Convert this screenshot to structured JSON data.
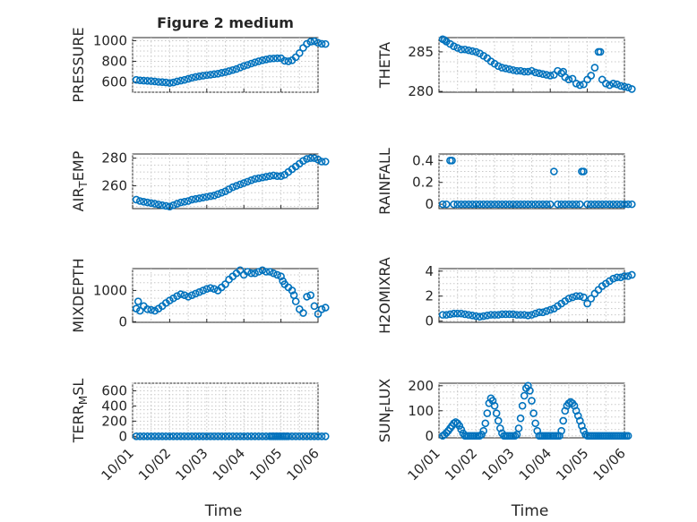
{
  "colors": {
    "marker": "#0072BD",
    "axis": "#262626",
    "grid": "#c8c8c8"
  },
  "chart_data": [
    {
      "type": "scatter",
      "id": "pressure",
      "title": "Figure 2 medium",
      "xlabel": "",
      "ylabel": "PRESSURE",
      "xlim": [
        0,
        5
      ],
      "ylim": [
        500,
        1030
      ],
      "yticks": [
        600,
        800,
        1000
      ],
      "ytick_labels": [
        "600",
        "800",
        "1000"
      ],
      "x": [
        0.1,
        0.2,
        0.3,
        0.4,
        0.5,
        0.6,
        0.7,
        0.8,
        0.9,
        1.0,
        1.1,
        1.2,
        1.3,
        1.4,
        1.5,
        1.6,
        1.7,
        1.8,
        1.9,
        2.0,
        2.1,
        2.2,
        2.3,
        2.4,
        2.5,
        2.6,
        2.7,
        2.8,
        2.9,
        3.0,
        3.1,
        3.2,
        3.3,
        3.4,
        3.5,
        3.6,
        3.7,
        3.8,
        3.9,
        4.0,
        4.1,
        4.2,
        4.3,
        4.4,
        4.5,
        4.6,
        4.7,
        4.8,
        4.9,
        5.0,
        5.1,
        5.2
      ],
      "y": [
        620,
        615,
        612,
        610,
        608,
        605,
        600,
        598,
        595,
        590,
        595,
        605,
        612,
        620,
        630,
        640,
        648,
        655,
        660,
        665,
        670,
        675,
        680,
        688,
        695,
        705,
        715,
        725,
        740,
        755,
        765,
        778,
        790,
        800,
        810,
        818,
        825,
        828,
        830,
        830,
        805,
        800,
        810,
        840,
        880,
        930,
        970,
        990,
        995,
        980,
        970,
        968
      ]
    },
    {
      "type": "scatter",
      "id": "theta",
      "xlabel": "",
      "ylabel": "THETA",
      "xlim": [
        0,
        5
      ],
      "ylim": [
        279.9,
        286.8
      ],
      "yticks": [
        280,
        285
      ],
      "ytick_labels": [
        "280",
        "285"
      ],
      "x": [
        0.1,
        0.15,
        0.2,
        0.3,
        0.4,
        0.5,
        0.6,
        0.7,
        0.8,
        0.9,
        1.0,
        1.1,
        1.2,
        1.3,
        1.4,
        1.5,
        1.6,
        1.7,
        1.8,
        1.9,
        2.0,
        2.1,
        2.2,
        2.3,
        2.4,
        2.5,
        2.6,
        2.7,
        2.8,
        2.9,
        3.0,
        3.1,
        3.2,
        3.3,
        3.35,
        3.4,
        3.5,
        3.6,
        3.7,
        3.8,
        3.9,
        4.0,
        4.1,
        4.2,
        4.3,
        4.35,
        4.4,
        4.5,
        4.6,
        4.7,
        4.8,
        4.9,
        5.0,
        5.1,
        5.2
      ],
      "y": [
        286.6,
        286.5,
        286.3,
        286.0,
        285.7,
        285.5,
        285.3,
        285.3,
        285.2,
        285.1,
        285.0,
        284.8,
        284.5,
        284.2,
        283.8,
        283.5,
        283.2,
        283.0,
        282.9,
        282.8,
        282.7,
        282.6,
        282.6,
        282.5,
        282.5,
        282.6,
        282.4,
        282.3,
        282.2,
        282.1,
        282.0,
        282.1,
        282.6,
        282.3,
        282.5,
        281.8,
        281.5,
        281.6,
        281.0,
        280.8,
        280.9,
        281.5,
        282.0,
        283.0,
        285.0,
        285.0,
        281.5,
        281.0,
        280.8,
        281.0,
        280.9,
        280.7,
        280.6,
        280.5,
        280.3
      ]
    },
    {
      "type": "scatter",
      "id": "air_temp",
      "xlabel": "",
      "ylabel": "AIR_TEMP",
      "xlim": [
        0,
        5
      ],
      "ylim": [
        243.5,
        283
      ],
      "yticks": [
        260,
        280
      ],
      "ytick_labels": [
        "260",
        "280"
      ],
      "x": [
        0.1,
        0.2,
        0.3,
        0.4,
        0.5,
        0.6,
        0.7,
        0.8,
        0.9,
        1.0,
        1.1,
        1.2,
        1.3,
        1.4,
        1.5,
        1.6,
        1.7,
        1.8,
        1.9,
        2.0,
        2.1,
        2.2,
        2.3,
        2.4,
        2.5,
        2.6,
        2.7,
        2.8,
        2.9,
        3.0,
        3.1,
        3.2,
        3.3,
        3.4,
        3.5,
        3.6,
        3.7,
        3.8,
        3.9,
        4.0,
        4.1,
        4.2,
        4.3,
        4.4,
        4.5,
        4.6,
        4.7,
        4.8,
        4.9,
        5.0,
        5.1,
        5.2
      ],
      "y": [
        250,
        249,
        248.5,
        248,
        247.5,
        247,
        246.5,
        246,
        245.5,
        245,
        246,
        247,
        248,
        248.5,
        249,
        250,
        250.5,
        251,
        251.5,
        252,
        252.5,
        253,
        254,
        255,
        256,
        257.5,
        259,
        260,
        261,
        262,
        263,
        264,
        265,
        265.5,
        266,
        266.5,
        267,
        267.5,
        267,
        267,
        268,
        270,
        272,
        274,
        276,
        278,
        279.5,
        280,
        280,
        279,
        277.5,
        277.5
      ]
    },
    {
      "type": "scatter",
      "id": "rainfall",
      "xlabel": "",
      "ylabel": "RAINFALL",
      "xlim": [
        0,
        5
      ],
      "ylim": [
        -0.04,
        0.46
      ],
      "yticks": [
        0,
        0.2,
        0.4
      ],
      "ytick_labels": [
        "0",
        "0.2",
        "0.4"
      ],
      "x": [
        0.3,
        0.35,
        3.1,
        3.85,
        3.9,
        0.1,
        0.2,
        0.4,
        0.5,
        0.6,
        0.7,
        0.8,
        0.9,
        1.0,
        1.1,
        1.2,
        1.3,
        1.4,
        1.5,
        1.6,
        1.7,
        1.8,
        1.9,
        2.0,
        2.1,
        2.2,
        2.3,
        2.4,
        2.5,
        2.6,
        2.7,
        2.8,
        2.9,
        3.0,
        3.2,
        3.3,
        3.4,
        3.5,
        3.6,
        3.7,
        3.8,
        4.0,
        4.1,
        4.2,
        4.3,
        4.4,
        4.5,
        4.6,
        4.7,
        4.8,
        4.9,
        5.0,
        5.1,
        5.2
      ],
      "y": [
        0.4,
        0.4,
        0.3,
        0.3,
        0.3,
        0,
        0,
        0,
        0,
        0,
        0,
        0,
        0,
        0,
        0,
        0,
        0,
        0,
        0,
        0,
        0,
        0,
        0,
        0,
        0,
        0,
        0,
        0,
        0,
        0,
        0,
        0,
        0,
        0,
        0,
        0,
        0,
        0,
        0,
        0,
        0,
        0,
        0,
        0,
        0,
        0,
        0,
        0,
        0,
        0,
        0,
        0,
        0,
        0
      ]
    },
    {
      "type": "scatter",
      "id": "mixdepth",
      "xlabel": "",
      "ylabel": "MIXDEPTH",
      "xlim": [
        0,
        5
      ],
      "ylim": [
        -20,
        1700
      ],
      "yticks": [
        0,
        1000
      ],
      "ytick_labels": [
        "0",
        "1000"
      ],
      "x": [
        0.1,
        0.15,
        0.2,
        0.3,
        0.4,
        0.5,
        0.6,
        0.7,
        0.8,
        0.9,
        1.0,
        1.1,
        1.2,
        1.3,
        1.4,
        1.5,
        1.6,
        1.7,
        1.8,
        1.9,
        2.0,
        2.1,
        2.2,
        2.3,
        2.4,
        2.5,
        2.6,
        2.7,
        2.8,
        2.9,
        3.0,
        3.1,
        3.2,
        3.3,
        3.4,
        3.5,
        3.6,
        3.7,
        3.8,
        3.9,
        4.0,
        4.05,
        4.1,
        4.2,
        4.3,
        4.35,
        4.4,
        4.5,
        4.6,
        4.7,
        4.8,
        4.9,
        5.0,
        5.1,
        5.2
      ],
      "y": [
        420,
        650,
        350,
        500,
        400,
        380,
        350,
        420,
        500,
        600,
        680,
        750,
        820,
        880,
        850,
        800,
        850,
        900,
        950,
        1000,
        1050,
        1080,
        1050,
        1000,
        1100,
        1200,
        1350,
        1450,
        1550,
        1650,
        1500,
        1600,
        1550,
        1550,
        1600,
        1650,
        1600,
        1600,
        1550,
        1500,
        1450,
        1300,
        1200,
        1100,
        1000,
        850,
        650,
        400,
        280,
        800,
        850,
        500,
        250,
        400,
        450
      ]
    },
    {
      "type": "scatter",
      "id": "h2omixra",
      "xlabel": "",
      "ylabel": "H2OMIXRA",
      "xlim": [
        0,
        5
      ],
      "ylim": [
        -0.1,
        4.2
      ],
      "yticks": [
        0,
        2,
        4
      ],
      "ytick_labels": [
        "0",
        "2",
        "4"
      ],
      "x": [
        0.1,
        0.2,
        0.3,
        0.4,
        0.5,
        0.6,
        0.7,
        0.8,
        0.9,
        1.0,
        1.1,
        1.2,
        1.3,
        1.4,
        1.5,
        1.6,
        1.7,
        1.8,
        1.9,
        2.0,
        2.1,
        2.2,
        2.3,
        2.4,
        2.5,
        2.6,
        2.7,
        2.8,
        2.9,
        3.0,
        3.1,
        3.2,
        3.3,
        3.4,
        3.5,
        3.6,
        3.7,
        3.8,
        3.9,
        4.0,
        4.1,
        4.2,
        4.3,
        4.4,
        4.5,
        4.6,
        4.7,
        4.8,
        4.9,
        5.0,
        5.1,
        5.2
      ],
      "y": [
        0.5,
        0.5,
        0.55,
        0.6,
        0.6,
        0.6,
        0.55,
        0.5,
        0.45,
        0.4,
        0.35,
        0.4,
        0.45,
        0.5,
        0.5,
        0.5,
        0.55,
        0.55,
        0.55,
        0.55,
        0.5,
        0.5,
        0.5,
        0.45,
        0.5,
        0.6,
        0.7,
        0.7,
        0.8,
        0.9,
        1.0,
        1.2,
        1.4,
        1.6,
        1.8,
        1.9,
        2.0,
        2.0,
        1.9,
        1.4,
        1.8,
        2.2,
        2.5,
        2.8,
        3.0,
        3.2,
        3.4,
        3.5,
        3.5,
        3.6,
        3.6,
        3.7
      ]
    },
    {
      "type": "scatter",
      "id": "terr_msl",
      "xlabel": "Time",
      "ylabel": "TERR_MSL",
      "xlim": [
        0,
        5
      ],
      "ylim": [
        -20,
        700
      ],
      "yticks": [
        0,
        200,
        400,
        600
      ],
      "ytick_labels": [
        "0",
        "200",
        "400",
        "600"
      ],
      "xticks": [
        0,
        1,
        2,
        3,
        4,
        5
      ],
      "xtick_labels": [
        "10/01",
        "10/02",
        "10/03",
        "10/04",
        "10/05",
        "10/06"
      ],
      "x": [
        0.1,
        0.2,
        0.3,
        0.4,
        0.5,
        0.6,
        0.7,
        0.8,
        0.9,
        1.0,
        1.1,
        1.2,
        1.3,
        1.4,
        1.5,
        1.6,
        1.7,
        1.8,
        1.9,
        2.0,
        2.1,
        2.2,
        2.3,
        2.4,
        2.5,
        2.6,
        2.7,
        2.8,
        2.9,
        3.0,
        3.1,
        3.2,
        3.3,
        3.4,
        3.5,
        3.6,
        3.7,
        3.75,
        3.8,
        3.85,
        3.9,
        3.95,
        4.0,
        4.05,
        4.1,
        4.15,
        4.2,
        4.3,
        4.4,
        4.5,
        4.6,
        4.7,
        4.8,
        4.9,
        5.0,
        5.1,
        5.2
      ],
      "y": [
        0,
        0,
        0,
        0,
        0,
        0,
        0,
        0,
        0,
        0,
        0,
        0,
        0,
        0,
        0,
        0,
        0,
        0,
        0,
        0,
        0,
        0,
        0,
        0,
        0,
        0,
        0,
        0,
        0,
        0,
        0,
        0,
        0,
        0,
        0,
        0,
        0,
        0,
        0,
        0,
        0,
        0,
        0,
        0,
        0,
        0,
        0,
        0,
        0,
        0,
        0,
        0,
        0,
        0,
        0,
        0,
        0
      ]
    },
    {
      "type": "scatter",
      "id": "sun_flux",
      "xlabel": "Time",
      "ylabel": "SUN_FLUX",
      "xlim": [
        0,
        5
      ],
      "ylim": [
        -8,
        210
      ],
      "yticks": [
        0,
        100,
        200
      ],
      "ytick_labels": [
        "0",
        "100",
        "200"
      ],
      "xticks": [
        0,
        1,
        2,
        3,
        4,
        5
      ],
      "xtick_labels": [
        "10/01",
        "10/02",
        "10/03",
        "10/04",
        "10/05",
        "10/06"
      ],
      "x": [
        0.1,
        0.15,
        0.2,
        0.25,
        0.3,
        0.35,
        0.4,
        0.45,
        0.5,
        0.55,
        0.6,
        0.65,
        0.7,
        0.75,
        0.8,
        0.85,
        0.9,
        0.95,
        1.0,
        1.05,
        1.1,
        1.15,
        1.2,
        1.25,
        1.3,
        1.35,
        1.4,
        1.45,
        1.5,
        1.55,
        1.6,
        1.65,
        1.7,
        1.75,
        1.8,
        1.85,
        1.9,
        1.95,
        2.0,
        2.05,
        2.1,
        2.15,
        2.2,
        2.25,
        2.3,
        2.35,
        2.4,
        2.45,
        2.5,
        2.55,
        2.6,
        2.65,
        2.7,
        2.75,
        2.8,
        2.85,
        2.9,
        2.95,
        3.0,
        3.05,
        3.1,
        3.15,
        3.2,
        3.25,
        3.3,
        3.35,
        3.4,
        3.45,
        3.5,
        3.55,
        3.6,
        3.65,
        3.7,
        3.75,
        3.8,
        3.85,
        3.9,
        3.95,
        4.0,
        4.05,
        4.1,
        4.15,
        4.2,
        4.25,
        4.3,
        4.35,
        4.4,
        4.45,
        4.5,
        4.55,
        4.6,
        4.65,
        4.7,
        4.75,
        4.8,
        4.85,
        4.9,
        4.95,
        5.0,
        5.05,
        5.1
      ],
      "y": [
        0,
        5,
        12,
        20,
        30,
        40,
        50,
        55,
        50,
        40,
        25,
        10,
        0,
        0,
        0,
        0,
        0,
        0,
        0,
        0,
        0,
        5,
        20,
        50,
        90,
        130,
        150,
        140,
        120,
        90,
        60,
        30,
        10,
        0,
        0,
        0,
        0,
        0,
        0,
        0,
        5,
        30,
        70,
        120,
        160,
        190,
        200,
        180,
        140,
        90,
        50,
        20,
        0,
        0,
        0,
        0,
        0,
        0,
        0,
        0,
        0,
        0,
        0,
        0,
        20,
        60,
        100,
        120,
        130,
        135,
        130,
        120,
        100,
        80,
        60,
        40,
        20,
        5,
        0,
        0,
        0,
        0,
        0,
        0,
        0,
        0,
        0,
        0,
        0,
        0,
        0,
        0,
        0,
        0,
        0,
        0,
        0,
        0,
        0,
        0,
        0
      ]
    }
  ]
}
